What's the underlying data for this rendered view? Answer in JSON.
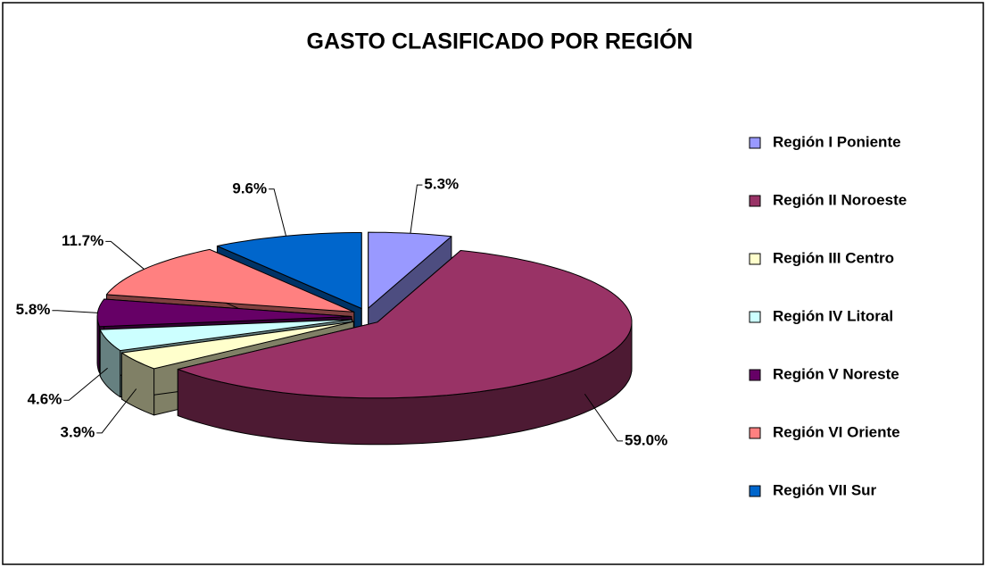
{
  "chart_data": {
    "type": "pie",
    "title": "GASTO CLASIFICADO POR REGIÓN",
    "categories": [
      "Región I Poniente",
      "Región II Noroeste",
      "Región III Centro",
      "Región IV Litoral",
      "Región V Noreste",
      "Región VI Oriente",
      "Región VII Sur"
    ],
    "values": [
      5.3,
      59.0,
      3.9,
      4.6,
      5.8,
      11.7,
      9.6
    ],
    "value_labels": [
      "5.3%",
      "59.0%",
      "3.9%",
      "4.6%",
      "5.8%",
      "11.7%",
      "9.6%"
    ],
    "colors": [
      "#9999ff",
      "#993366",
      "#ffffcc",
      "#ccffff",
      "#660066",
      "#ff8080",
      "#0066cc"
    ],
    "legend": "right"
  }
}
